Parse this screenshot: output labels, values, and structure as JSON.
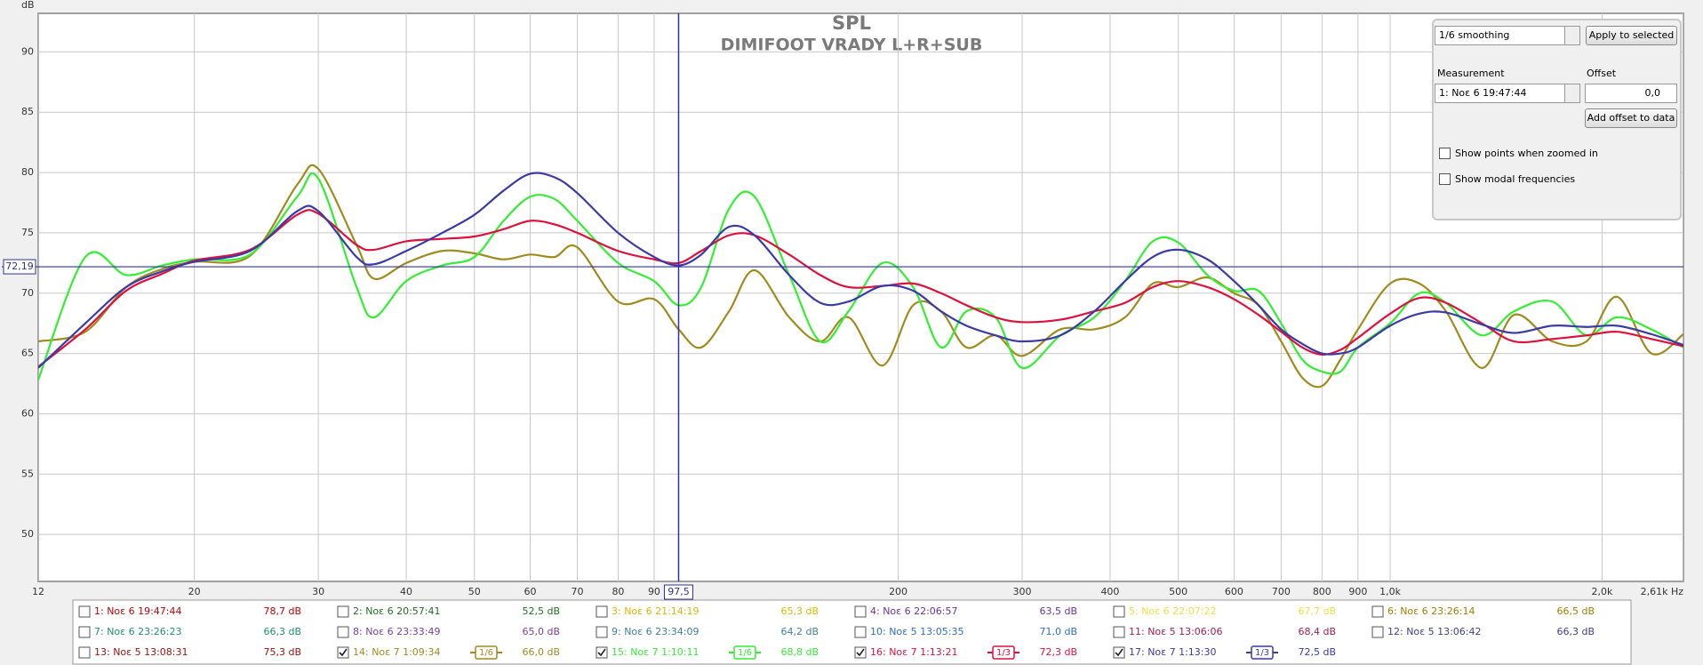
{
  "chart_data": {
    "type": "line",
    "title": "SPL",
    "subtitle": "DIMIFOOT VRADY L+R+SUB",
    "y_label": "dB",
    "log_x": true,
    "grid": true,
    "xlim": [
      12,
      2610
    ],
    "ylim": [
      46.1,
      93.2
    ],
    "xticks": [
      12,
      20,
      30,
      40,
      50,
      60,
      70,
      80,
      90,
      200,
      300,
      400,
      500,
      600,
      700,
      800,
      900,
      {
        "value": 1000,
        "label": "1,0k"
      },
      {
        "value": 2000,
        "label": "2,0k"
      },
      {
        "value": 2610,
        "label": "2,61k Hz"
      }
    ],
    "yticks": [
      50,
      55,
      60,
      65,
      70,
      75,
      80,
      85,
      90
    ],
    "cursor": {
      "x": {
        "value": 97.5,
        "label": "97,5"
      },
      "y": {
        "value": 72.19,
        "label": "72,19"
      },
      "color": "#3030a0"
    },
    "x": [
      12,
      14,
      16,
      18,
      20,
      24,
      28,
      30,
      34,
      36,
      40,
      45,
      50,
      55,
      60,
      65,
      70,
      80,
      90,
      97.5,
      105,
      115,
      125,
      140,
      155,
      170,
      190,
      210,
      230,
      250,
      275,
      300,
      340,
      380,
      420,
      460,
      500,
      550,
      600,
      650,
      700,
      750,
      800,
      850,
      900,
      1000,
      1100,
      1200,
      1350,
      1500,
      1700,
      1900,
      2100,
      2350,
      2610
    ],
    "series": [
      {
        "name": "1: Νοε 6 19:47:44",
        "color": "#c00000",
        "level": "78,7 dB",
        "checked": false
      },
      {
        "name": "2: Νοε 6 20:57:41",
        "color": "#207020",
        "level": "52,5 dB",
        "checked": false
      },
      {
        "name": "3: Νοε 6 21:14:19",
        "color": "#e0b800",
        "level": "65,3 dB",
        "checked": false
      },
      {
        "name": "4: Νοε 6 22:06:57",
        "color": "#7030a0",
        "level": "63,5 dB",
        "checked": false
      },
      {
        "name": "5: Νοε 6 22:07:22",
        "color": "#f0e040",
        "level": "67,7 dB",
        "checked": false
      },
      {
        "name": "6: Νοε 6 23:26:14",
        "color": "#a08000",
        "level": "66,5 dB",
        "checked": false
      },
      {
        "name": "7: Νοε 6 23:26:23",
        "color": "#209070",
        "level": "66,3 dB",
        "checked": false
      },
      {
        "name": "8: Νοε 6 23:33:49",
        "color": "#8040a0",
        "level": "65,0 dB",
        "checked": false
      },
      {
        "name": "9: Νοε 6 23:34:09",
        "color": "#4080a0",
        "level": "64,2 dB",
        "checked": false
      },
      {
        "name": "10: Νοε 5 13:05:35",
        "color": "#3070c0",
        "level": "71,0 dB",
        "checked": false
      },
      {
        "name": "11: Νοε 5 13:06:06",
        "color": "#a02050",
        "level": "68,4 dB",
        "checked": false
      },
      {
        "name": "12: Νοε 5 13:06:42",
        "color": "#404090",
        "level": "66,3 dB",
        "checked": false
      },
      {
        "name": "13: Νοε 5 13:08:31",
        "color": "#a01010",
        "level": "75,3 dB",
        "checked": false
      },
      {
        "name": "14: Νοε 7 1:09:34",
        "color": "#a08c1e",
        "level": "66,0 dB",
        "checked": true,
        "smoothing": "1/6",
        "values": [
          66.0,
          66.8,
          70.5,
          72.0,
          72.6,
          73.1,
          79.0,
          80.3,
          74.0,
          71.2,
          72.5,
          73.5,
          73.3,
          72.8,
          73.2,
          73.0,
          73.8,
          69.3,
          69.5,
          67.0,
          65.5,
          68.5,
          71.9,
          68.0,
          66.0,
          68.0,
          64.0,
          69.0,
          68.5,
          65.5,
          66.5,
          64.8,
          67.0,
          67.0,
          68.0,
          70.8,
          70.5,
          71.3,
          70.0,
          69.0,
          66.0,
          63.0,
          62.3,
          64.5,
          67.0,
          70.8,
          70.8,
          68.5,
          63.8,
          68.2,
          66.0,
          66.0,
          69.7,
          65.0,
          66.6
        ]
      },
      {
        "name": "15: Νοε 7 1:10:11",
        "color": "#33ee33",
        "level": "68,8 dB",
        "checked": true,
        "smoothing": "1/6",
        "values": [
          62.8,
          73.0,
          71.5,
          72.3,
          72.8,
          73.2,
          78.0,
          79.5,
          70.5,
          68.0,
          71.0,
          72.3,
          73.0,
          76.0,
          78.0,
          77.8,
          76.0,
          72.5,
          71.0,
          69.0,
          70.5,
          77.0,
          78.0,
          71.5,
          66.0,
          68.5,
          72.5,
          70.5,
          65.5,
          68.5,
          68.0,
          63.8,
          66.5,
          68.0,
          71.0,
          74.3,
          74.2,
          71.5,
          70.2,
          70.2,
          67.5,
          64.5,
          63.5,
          63.5,
          65.5,
          67.5,
          70.0,
          69.2,
          66.5,
          68.5,
          69.3,
          66.5,
          68.0,
          67.0,
          65.5
        ]
      },
      {
        "name": "16: Νοε 7 1:13:21",
        "color": "#e0103c",
        "level": "72,3 dB",
        "checked": true,
        "smoothing": "1/3",
        "values": [
          63.9,
          67.0,
          70.2,
          71.6,
          72.7,
          73.6,
          76.5,
          76.6,
          74.0,
          73.6,
          74.3,
          74.5,
          74.7,
          75.3,
          76.0,
          75.7,
          75.0,
          73.5,
          72.8,
          72.5,
          73.5,
          74.8,
          74.8,
          73.2,
          71.5,
          70.5,
          70.6,
          70.8,
          70.0,
          69.0,
          68.0,
          67.6,
          67.8,
          68.5,
          69.2,
          70.5,
          71.0,
          70.5,
          69.5,
          68.2,
          66.8,
          65.5,
          64.9,
          65.3,
          66.3,
          68.3,
          69.6,
          69.2,
          67.5,
          66.0,
          66.2,
          66.5,
          66.8,
          66.2,
          65.6
        ]
      },
      {
        "name": "17: Νοε 7 1:13:30",
        "color": "#3a3aa8",
        "level": "72,5 dB",
        "checked": true,
        "smoothing": "1/3",
        "values": [
          63.8,
          67.5,
          70.5,
          71.8,
          72.6,
          73.5,
          76.8,
          76.8,
          73.0,
          72.4,
          73.5,
          75.0,
          76.5,
          78.5,
          79.9,
          79.6,
          78.3,
          75.0,
          73.0,
          72.3,
          73.2,
          75.5,
          74.8,
          71.5,
          69.2,
          69.3,
          70.6,
          70.2,
          68.5,
          67.3,
          66.5,
          66.0,
          66.5,
          68.5,
          71.0,
          73.0,
          73.6,
          72.8,
          71.0,
          69.0,
          67.0,
          65.8,
          65.0,
          65.0,
          65.5,
          67.3,
          68.3,
          68.4,
          67.4,
          66.7,
          67.3,
          67.2,
          67.3,
          66.6,
          65.7
        ]
      }
    ]
  },
  "controls": {
    "smoothing": "1/6 smoothing",
    "apply": "Apply to selected",
    "measurement_label": "Measurement",
    "measurement": "1: Νοε 6 19:47:44",
    "offset_label": "Offset",
    "offset": "0,0",
    "add_offset": "Add offset to data",
    "show_points": "Show points when zoomed in",
    "show_modal": "Show modal frequencies"
  }
}
